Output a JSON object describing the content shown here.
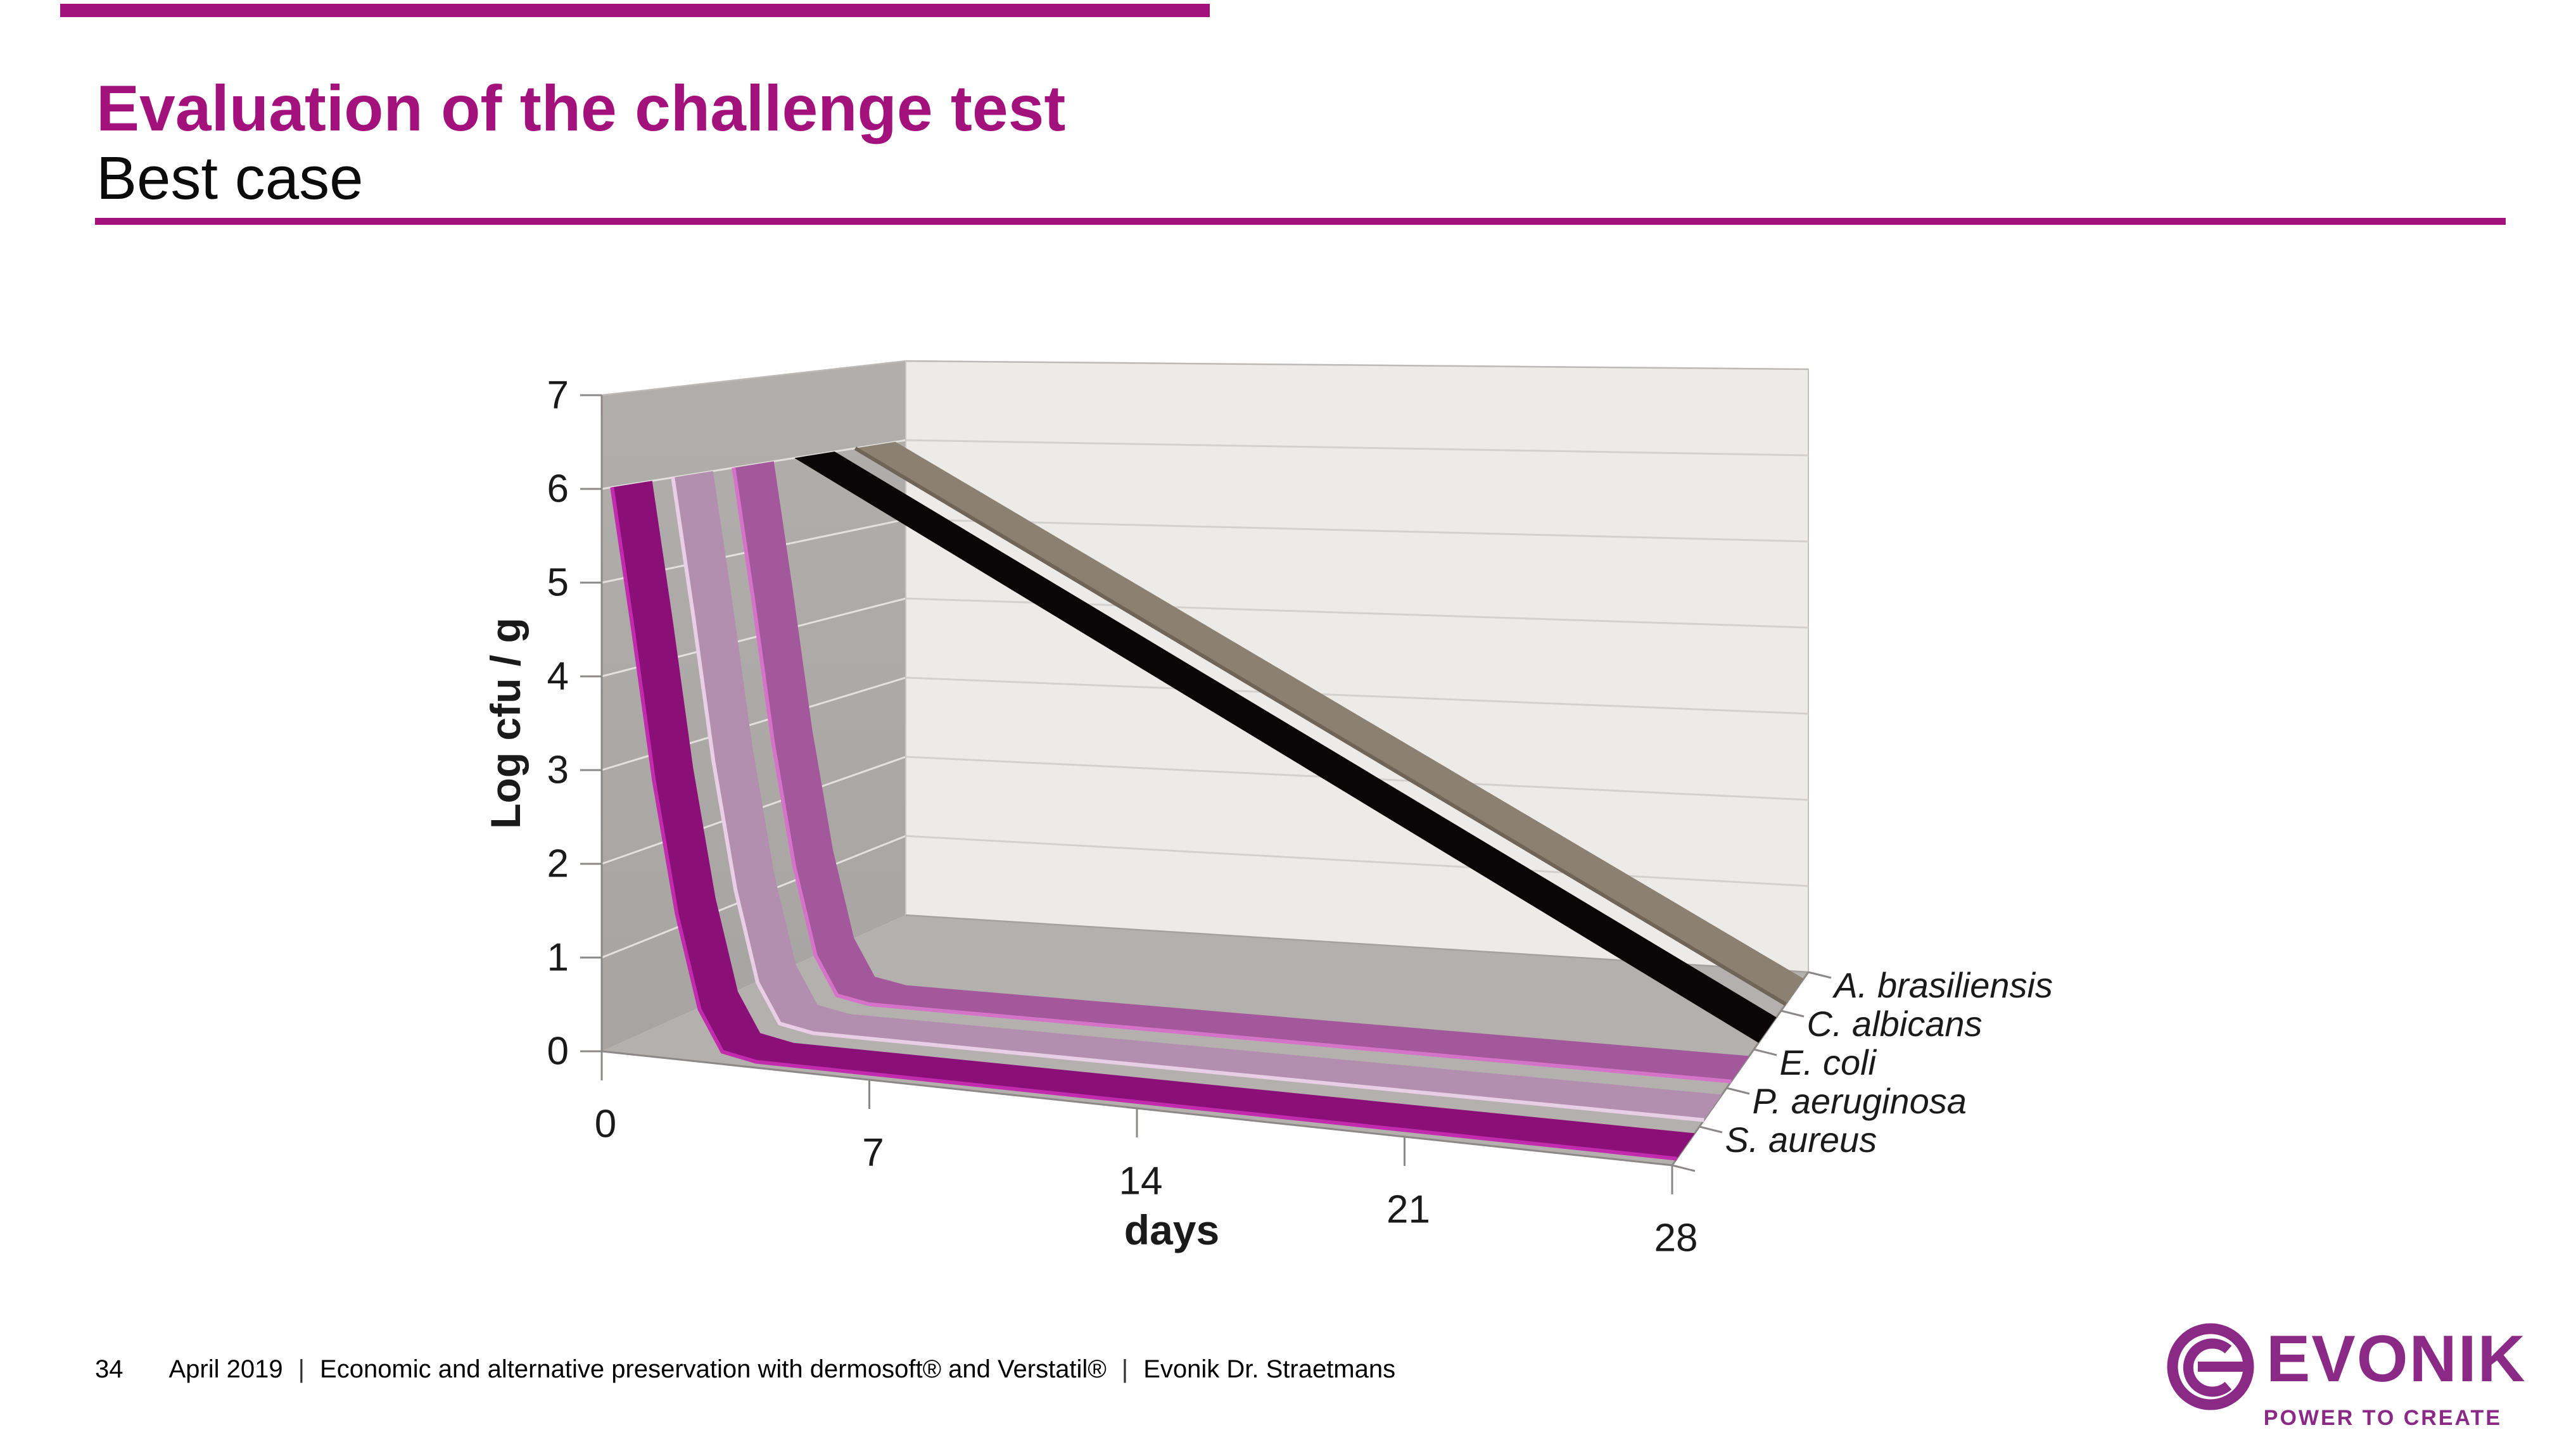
{
  "slide": {
    "title": "Evaluation of the challenge test",
    "subtitle": "Best case",
    "accent_color": "#a3117c",
    "footer": {
      "page_number": "34",
      "date": "April 2019",
      "separator": "|",
      "description": "Economic and alternative preservation with dermosoft® and Verstatil®",
      "author": "Evonik Dr. Straetmans"
    },
    "logo": {
      "brand": "EVONIK",
      "tagline": "POWER TO CREATE",
      "color": "#8b2a86",
      "mark": "circle-e-icon"
    }
  },
  "chart_data": {
    "type": "line",
    "style": "3d-ribbon",
    "title": "",
    "xlabel": "days",
    "ylabel": "Log cfu / g",
    "x_ticks": [
      0,
      7,
      14,
      21,
      28
    ],
    "y_ticks": [
      0,
      1,
      2,
      3,
      4,
      5,
      6,
      7
    ],
    "ylim": [
      0,
      7
    ],
    "grid": true,
    "legend_position": "right-of-series-axis",
    "series": [
      {
        "name": "S. aureus",
        "row": 0,
        "color": "#8a1078",
        "edge_color": "#c22bae",
        "values": [
          6,
          0,
          0,
          0,
          0
        ],
        "path": [
          [
            0,
            6
          ],
          [
            0.55,
            4.5
          ],
          [
            1.1,
            2.9
          ],
          [
            1.7,
            1.5
          ],
          [
            2.3,
            0.5
          ],
          [
            2.9,
            0.07
          ],
          [
            3.8,
            0
          ],
          [
            28,
            0
          ]
        ],
        "note": "drops from 6 log to below detection within ~2 days, stays at 0 until day 28"
      },
      {
        "name": "P. aeruginosa",
        "row": 1,
        "color": "#b28fae",
        "edge_color": "#e9cfe6",
        "values": [
          6,
          0,
          0,
          0,
          0
        ],
        "path": [
          [
            0,
            6
          ],
          [
            0.55,
            4.5
          ],
          [
            1.1,
            2.9
          ],
          [
            1.7,
            1.5
          ],
          [
            2.3,
            0.5
          ],
          [
            2.9,
            0.07
          ],
          [
            3.8,
            0
          ],
          [
            28,
            0
          ]
        ],
        "note": "drops from 6 log to below detection within ~2 days, stays at 0 until day 28"
      },
      {
        "name": "E. coli",
        "row": 2,
        "color": "#a3589b",
        "edge_color": "#d573c8",
        "values": [
          6,
          0,
          0,
          0,
          0
        ],
        "path": [
          [
            0,
            6
          ],
          [
            0.55,
            4.5
          ],
          [
            1.1,
            2.9
          ],
          [
            1.7,
            1.5
          ],
          [
            2.3,
            0.5
          ],
          [
            2.9,
            0.07
          ],
          [
            3.8,
            0
          ],
          [
            28,
            0
          ]
        ],
        "note": "drops from 6 log to below detection within ~2 days, stays at 0 until day 28"
      },
      {
        "name": "C. albicans",
        "row": 3,
        "color": "#0a0507",
        "edge_color": null,
        "values": [
          6,
          4.5,
          3,
          1.5,
          0
        ],
        "path": [
          [
            0,
            6
          ],
          [
            28,
            0
          ]
        ],
        "note": "linear decline from 6 log at day 0 to 0 at day 28"
      },
      {
        "name": "A. brasiliensis",
        "row": 4,
        "color": "#8b8173",
        "edge_color": "#6e6457",
        "values": [
          6,
          4.5,
          3,
          1.5,
          0
        ],
        "path": [
          [
            0,
            6
          ],
          [
            28,
            0
          ]
        ],
        "note": "linear decline from 6 log at day 0 to 0 at day 28"
      }
    ],
    "colors": {
      "left_wall": "#a7a4a2",
      "left_wall_top": "#b1aeac",
      "back_wall": "#edebe8",
      "floor": "#b4b0ae",
      "grid_left_wall": "#e3e0de",
      "grid_back_wall": "#d4d0ce",
      "axis": "#8b8887",
      "tick_label": "#1a1a1a"
    }
  }
}
